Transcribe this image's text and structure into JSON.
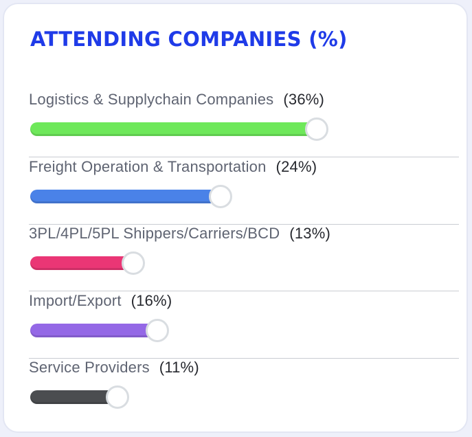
{
  "title": "ATTENDING COMPANIES (%)",
  "colors": {
    "title": "#1f3be8",
    "knob_border": "#d9dde1"
  },
  "chart_data": {
    "type": "bar",
    "orientation": "horizontal",
    "title": "ATTENDING COMPANIES (%)",
    "categories": [
      "Logistics & Supplychain Companies",
      "Freight Operation & Transportation",
      "3PL/4PL/5PL Shippers/Carriers/BCD",
      "Import/Export",
      "Service Providers"
    ],
    "values": [
      36,
      24,
      13,
      16,
      11
    ],
    "value_labels": [
      "(36%)",
      "(24%)",
      "(13%)",
      "(16%)",
      "(11%)"
    ],
    "colors": [
      "#6ee85a",
      "#4a82e8",
      "#ea3675",
      "#9468e6",
      "#4b4d50"
    ],
    "grid": false
  }
}
